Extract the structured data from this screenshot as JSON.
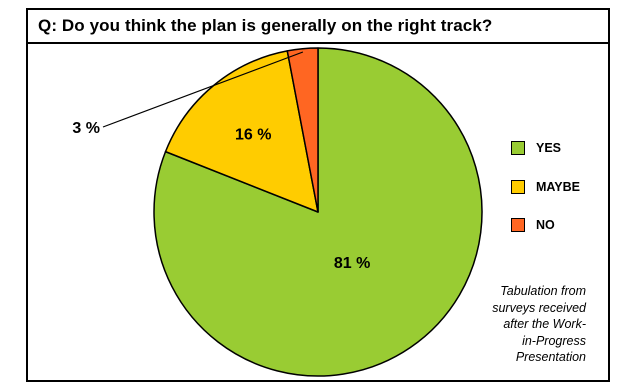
{
  "chart_data": {
    "type": "pie",
    "title": "Q: Do you think the plan is generally on the right track?",
    "slices": [
      {
        "label": "YES",
        "value": 81,
        "data_label": "81 %",
        "color": "#99cc33"
      },
      {
        "label": "MAYBE",
        "value": 16,
        "data_label": "16 %",
        "color": "#ffcc00"
      },
      {
        "label": "NO",
        "value": 3,
        "data_label": "3 %",
        "color": "#ff6622"
      }
    ],
    "legend_position": "right",
    "note": "Tabulation from\nsurveys received\nafter the Work-\nin-Progress\nPresentation"
  }
}
